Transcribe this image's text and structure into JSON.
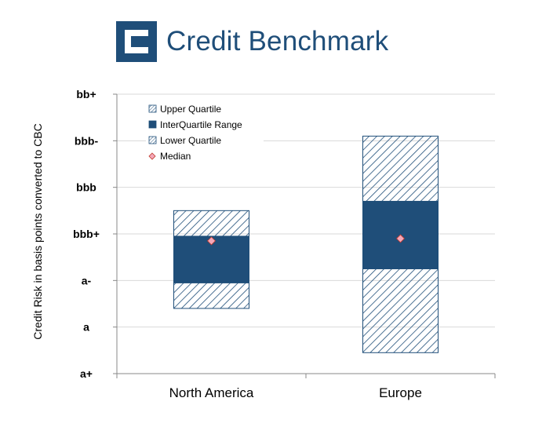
{
  "header": {
    "brand": "Credit Benchmark",
    "logo_icon": "credit-benchmark-logo-icon"
  },
  "colors": {
    "iqr": "#1f4e79",
    "hatch": "#1f4e79",
    "median": "#f4a7b9",
    "median_stroke": "#c0392b",
    "grid": "#d9d9d9"
  },
  "chart_data": {
    "type": "box",
    "ylabel": "Credit Risk in basis points converted to CBC",
    "y_ticks": [
      "a+",
      "a",
      "a-",
      "bbb+",
      "bbb",
      "bbb-",
      "bb+"
    ],
    "ylim": [
      0,
      6
    ],
    "grid": true,
    "legend_position": "top-left",
    "categories": [
      "North America",
      "Europe"
    ],
    "series": [
      {
        "name": "Upper Quartile",
        "style": "hatch-light",
        "low": [
          2.95,
          3.7
        ],
        "high": [
          3.5,
          5.1
        ]
      },
      {
        "name": "InterQuartile Range",
        "style": "solid",
        "low": [
          1.95,
          2.25
        ],
        "high": [
          2.95,
          3.7
        ]
      },
      {
        "name": "Lower Quartile",
        "style": "hatch",
        "low": [
          1.4,
          0.45
        ],
        "high": [
          1.95,
          2.25
        ]
      },
      {
        "name": "Median",
        "style": "diamond",
        "values": [
          2.85,
          2.9
        ]
      }
    ]
  }
}
